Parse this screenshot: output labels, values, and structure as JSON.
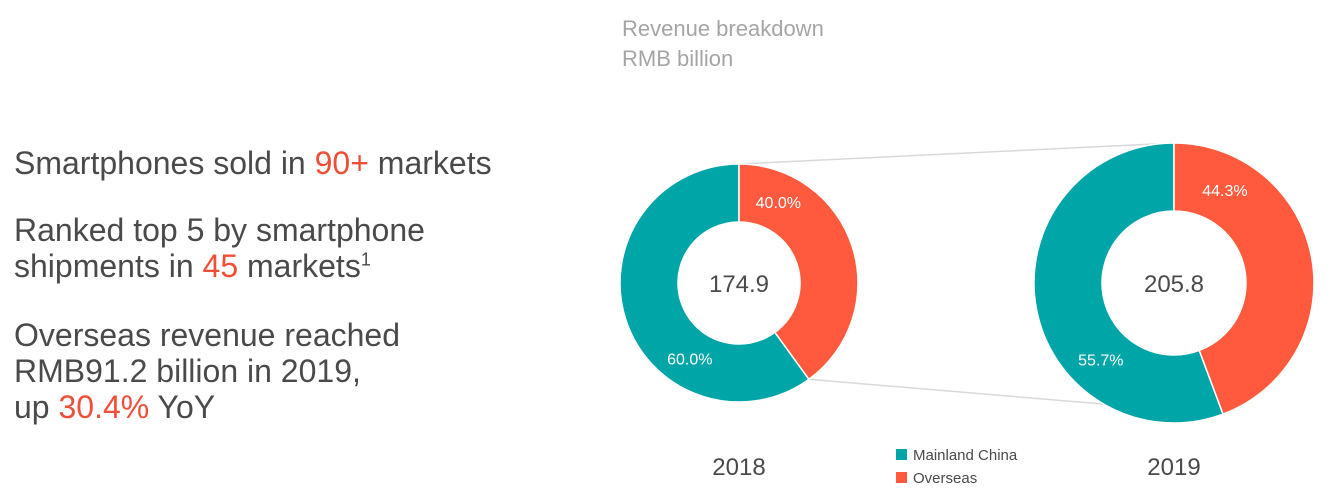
{
  "highlights": {
    "line1": {
      "pre": "Smartphones sold in ",
      "hl": "90+",
      "post": " markets"
    },
    "line2": {
      "a": "Ranked top 5 by smartphone",
      "pre": "shipments in ",
      "hl": "45",
      "post": " markets",
      "sup": "1"
    },
    "line3": {
      "a": "Overseas revenue reached",
      "b": "RMB91.2 billion in 2019,",
      "pre": "up ",
      "hl": "30.4%",
      "post": " YoY"
    }
  },
  "colors": {
    "mainland": "#00a5a8",
    "overseas": "#ff5a3d",
    "highlight": "#f04e37",
    "connector": "#d9d9d9"
  },
  "chart_data": {
    "type": "pie",
    "title": [
      "Revenue breakdown",
      "RMB billion"
    ],
    "series_names": [
      "Mainland China",
      "Overseas"
    ],
    "legend": [
      "Mainland China",
      "Overseas"
    ],
    "legend_position": "bottom-center",
    "donuts": [
      {
        "year": "2018",
        "total": "174.9",
        "values": [
          60.0,
          40.0
        ],
        "labels": [
          "60.0%",
          "40.0%"
        ]
      },
      {
        "year": "2019",
        "total": "205.8",
        "values": [
          55.7,
          44.3
        ],
        "labels": [
          "55.7%",
          "44.3%"
        ]
      }
    ]
  }
}
